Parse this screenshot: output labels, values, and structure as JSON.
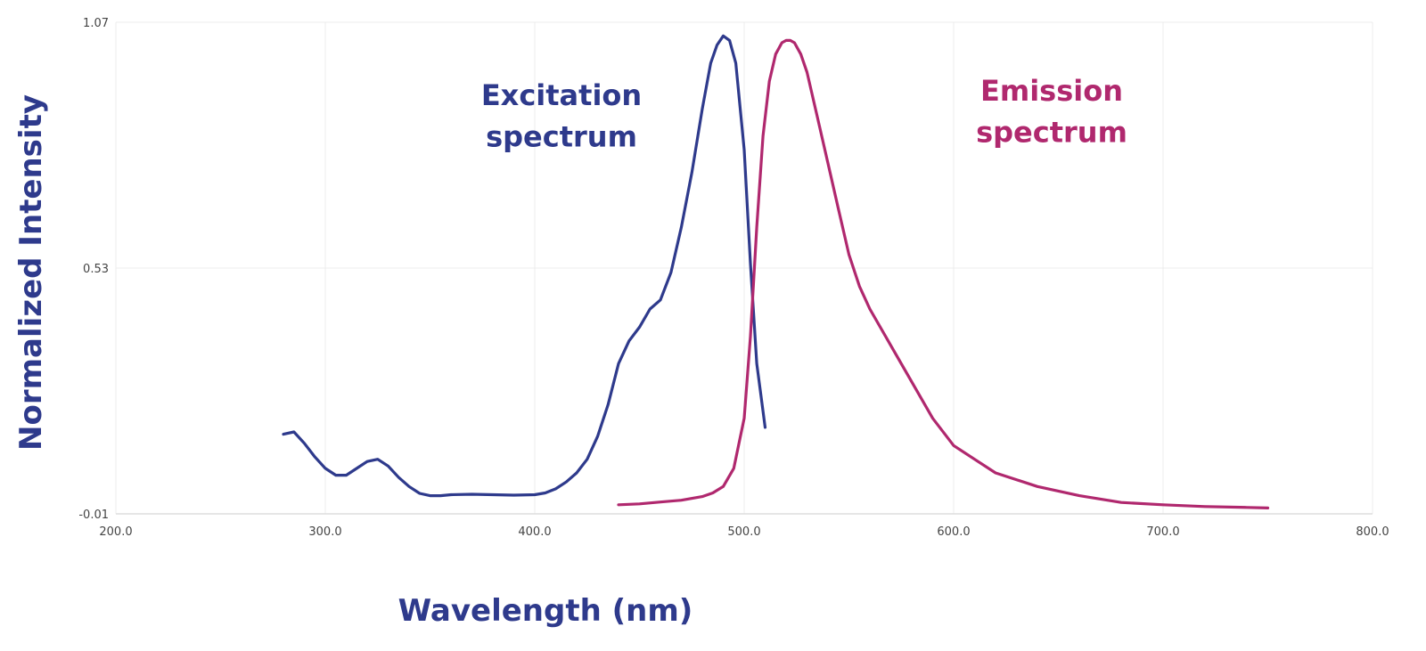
{
  "chart_data": {
    "type": "line",
    "title": "",
    "xlabel": "Wavelength (nm)",
    "ylabel": "Normalized Intensity",
    "xlim": [
      200.0,
      800.0
    ],
    "ylim": [
      -0.01,
      1.07
    ],
    "x_ticks": [
      "200.0",
      "300.0",
      "400.0",
      "500.0",
      "600.0",
      "700.0",
      "800.0"
    ],
    "x_tick_values": [
      200,
      300,
      400,
      500,
      600,
      700,
      800
    ],
    "y_ticks": [
      "-0.01",
      "0.53",
      "1.07"
    ],
    "y_tick_values": [
      -0.01,
      0.53,
      1.07
    ],
    "grid": true,
    "axis_title_color": "#2e3a8c",
    "series": [
      {
        "name": "Excitation spectrum",
        "label_lines": [
          "Excitation",
          "spectrum"
        ],
        "color": "#2e3a8c",
        "x": [
          280,
          285,
          290,
          295,
          300,
          305,
          310,
          315,
          320,
          325,
          330,
          335,
          340,
          345,
          350,
          355,
          360,
          370,
          380,
          390,
          400,
          405,
          410,
          415,
          420,
          425,
          430,
          435,
          440,
          445,
          450,
          455,
          460,
          465,
          470,
          475,
          480,
          484,
          487,
          490,
          493,
          496,
          500,
          503,
          506,
          508,
          510
        ],
        "y": [
          0.165,
          0.17,
          0.145,
          0.115,
          0.09,
          0.075,
          0.075,
          0.09,
          0.105,
          0.11,
          0.095,
          0.07,
          0.05,
          0.035,
          0.03,
          0.03,
          0.032,
          0.033,
          0.032,
          0.031,
          0.032,
          0.036,
          0.045,
          0.06,
          0.08,
          0.11,
          0.16,
          0.23,
          0.32,
          0.37,
          0.4,
          0.44,
          0.46,
          0.52,
          0.62,
          0.74,
          0.88,
          0.98,
          1.02,
          1.04,
          1.03,
          0.98,
          0.79,
          0.54,
          0.32,
          0.25,
          0.18
        ]
      },
      {
        "name": "Emission spectrum",
        "label_lines": [
          "Emission",
          "spectrum"
        ],
        "color": "#b0286e",
        "x": [
          440,
          450,
          460,
          470,
          480,
          485,
          490,
          495,
          500,
          503,
          506,
          509,
          512,
          515,
          518,
          520,
          522,
          524,
          527,
          530,
          535,
          540,
          545,
          550,
          555,
          560,
          570,
          580,
          590,
          600,
          610,
          620,
          640,
          660,
          680,
          700,
          720,
          740,
          750
        ],
        "y": [
          0.01,
          0.012,
          0.016,
          0.02,
          0.028,
          0.036,
          0.05,
          0.09,
          0.2,
          0.38,
          0.62,
          0.82,
          0.94,
          1.0,
          1.025,
          1.03,
          1.03,
          1.025,
          1.0,
          0.96,
          0.86,
          0.76,
          0.66,
          0.56,
          0.49,
          0.44,
          0.36,
          0.28,
          0.2,
          0.14,
          0.11,
          0.08,
          0.05,
          0.03,
          0.015,
          0.01,
          0.006,
          0.004,
          0.003
        ]
      }
    ]
  }
}
